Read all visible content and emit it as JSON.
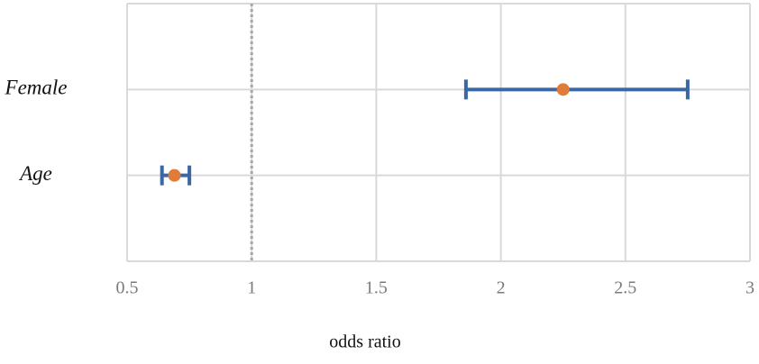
{
  "chart_data": {
    "type": "forest",
    "x_label": "odds ratio",
    "categories": [
      "Female",
      "Age"
    ],
    "series": [
      {
        "values": [
          2.25,
          0.69
        ],
        "ci_lower": [
          1.86,
          0.64
        ],
        "ci_upper": [
          2.75,
          0.75
        ],
        "color": "#e07b39",
        "ci_color": "#3b67a5"
      }
    ],
    "xlim": [
      0.5,
      3
    ],
    "xticks": [
      0.5,
      1,
      1.5,
      2,
      2.5,
      3
    ],
    "reference_line": 1,
    "grid": true
  }
}
